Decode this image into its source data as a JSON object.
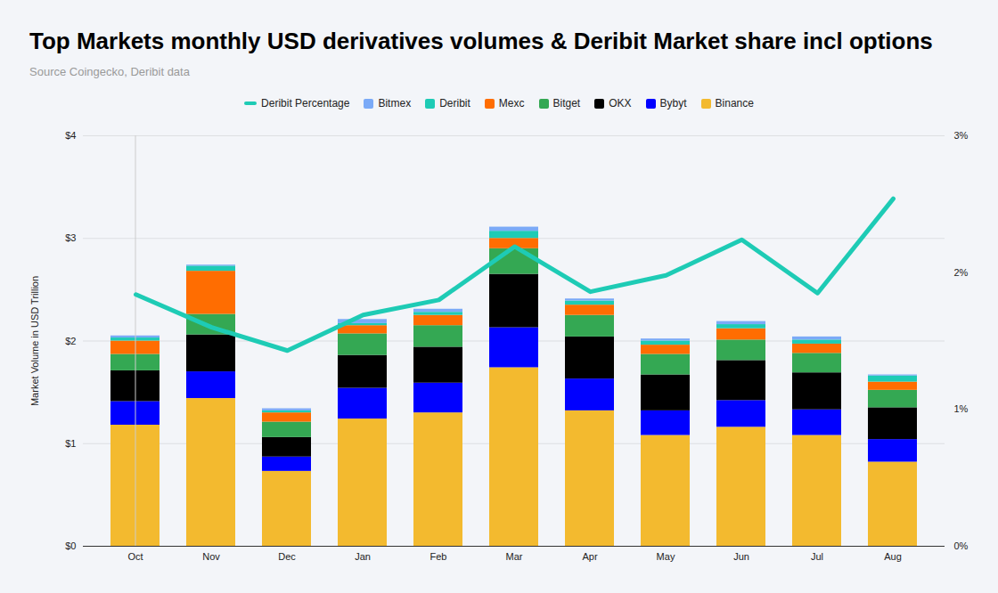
{
  "chart_data": {
    "type": "bar",
    "title": "Top Markets monthly USD derivatives volumes & Deribit Market share incl options",
    "subtitle": "Source Coingecko, Deribit data",
    "y_label": "Market Volume in USD Trillion",
    "categories": [
      "Oct",
      "Nov",
      "Dec",
      "Jan",
      "Feb",
      "Mar",
      "Apr",
      "May",
      "Jun",
      "Jul",
      "Aug"
    ],
    "stacked": true,
    "grid": true,
    "legend": "top",
    "ylim": [
      0,
      4
    ],
    "yticks": [
      {
        "value": 0,
        "label": "$0"
      },
      {
        "value": 1,
        "label": "$1"
      },
      {
        "value": 2,
        "label": "$2"
      },
      {
        "value": 3,
        "label": "$3"
      },
      {
        "value": 4,
        "label": "$4"
      }
    ],
    "y2lim": [
      0,
      3
    ],
    "y2ticks": [
      {
        "value": 0,
        "label": "0%"
      },
      {
        "value": 1,
        "label": "1%"
      },
      {
        "value": 2,
        "label": "2%"
      },
      {
        "value": 3,
        "label": "3%"
      }
    ],
    "series": [
      {
        "name": "Binance",
        "color": "#f3ba2f",
        "values": [
          1.18,
          1.44,
          0.73,
          1.24,
          1.3,
          1.74,
          1.32,
          1.08,
          1.16,
          1.08,
          0.82
        ]
      },
      {
        "name": "Bybyt",
        "color": "#0000ff",
        "values": [
          0.23,
          0.26,
          0.14,
          0.3,
          0.29,
          0.39,
          0.31,
          0.24,
          0.26,
          0.25,
          0.22
        ]
      },
      {
        "name": "OKX",
        "color": "#000000",
        "values": [
          0.3,
          0.36,
          0.19,
          0.32,
          0.35,
          0.52,
          0.41,
          0.35,
          0.39,
          0.36,
          0.31
        ]
      },
      {
        "name": "Bitget",
        "color": "#34a853",
        "values": [
          0.16,
          0.2,
          0.15,
          0.21,
          0.21,
          0.25,
          0.21,
          0.2,
          0.2,
          0.19,
          0.17
        ]
      },
      {
        "name": "Mexc",
        "color": "#ff6d01",
        "values": [
          0.13,
          0.42,
          0.09,
          0.08,
          0.1,
          0.1,
          0.1,
          0.09,
          0.11,
          0.09,
          0.08
        ]
      },
      {
        "name": "Deribit",
        "color": "#1ecbb5",
        "values": [
          0.03,
          0.05,
          0.02,
          0.02,
          0.03,
          0.07,
          0.04,
          0.04,
          0.04,
          0.04,
          0.06
        ]
      },
      {
        "name": "Bitmex",
        "color": "#7baaf7",
        "values": [
          0.02,
          0.01,
          0.02,
          0.04,
          0.03,
          0.04,
          0.02,
          0.02,
          0.03,
          0.03,
          0.01
        ]
      },
      {
        "name": "Deribit Percentage",
        "type": "line",
        "axis": "y2",
        "color": "#1ecbb5",
        "values": [
          1.84,
          1.6,
          1.43,
          1.69,
          1.8,
          2.19,
          1.86,
          1.98,
          2.24,
          1.85,
          2.54
        ]
      }
    ]
  }
}
